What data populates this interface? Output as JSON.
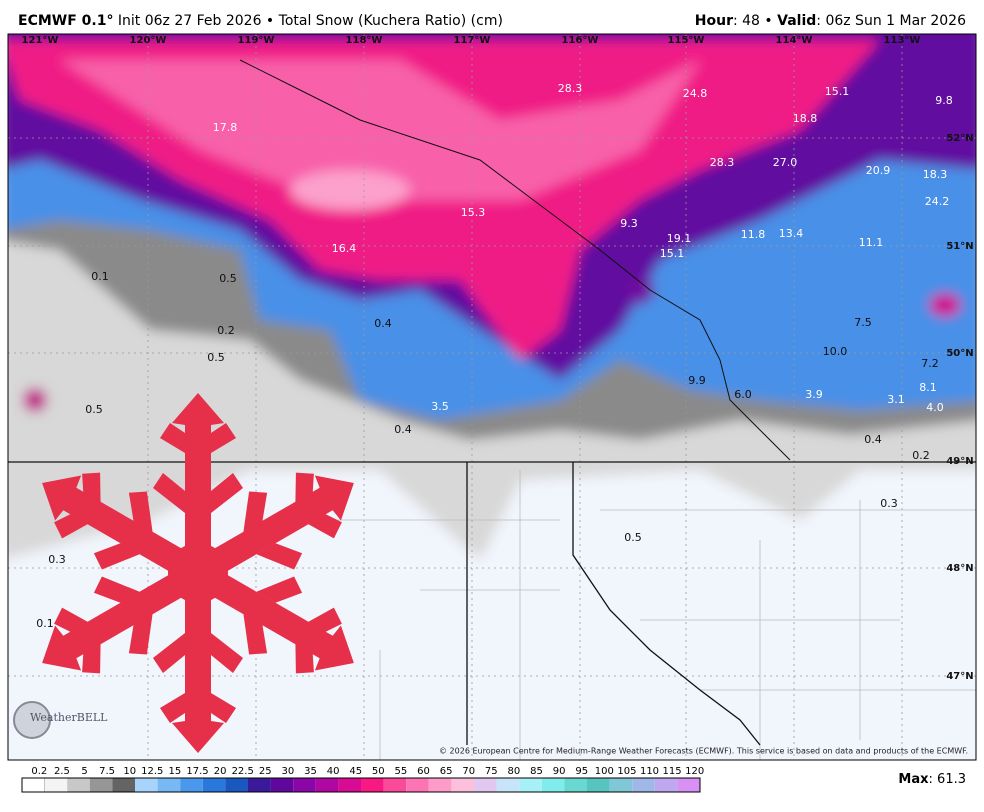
{
  "header": {
    "model": "ECMWF 0.1°",
    "run": "Init 06z 27 Feb 2026 • Total Snow (Kuchera Ratio) (cm)",
    "hour_label": "Hour",
    "hour": ": 48 •",
    "valid_label": "Valid",
    "valid": ": 06z Sun 1 Mar 2026"
  },
  "map": {
    "longitudes": [
      "121°W",
      "120°W",
      "119°W",
      "118°W",
      "117°W",
      "116°W",
      "115°W",
      "114°W",
      "113°W"
    ],
    "latitudes": [
      "52°N",
      "51°N",
      "50°N",
      "49°N",
      "48°N",
      "47°N"
    ],
    "labels": [
      "28.3",
      "24.8",
      "15.1",
      "9.8",
      "17.8",
      "18.8",
      "28.3",
      "27.0",
      "20.9",
      "18.3",
      "24.2",
      "15.3",
      "9.3",
      "19.1",
      "15.1",
      "11.8",
      "13.4",
      "11.1",
      "16.4",
      "0.1",
      "0.5",
      "0.4",
      "0.2",
      "7.5",
      "0.5",
      "10.0",
      "7.2",
      "9.9",
      "8.1",
      "6.0",
      "3.9",
      "3.1",
      "4.0",
      "3.5",
      "0.5",
      "0.4",
      "0.4",
      "0.2",
      "0.3",
      "0.5",
      "0.3",
      "0.1"
    ],
    "logo": "WeatherBELL",
    "copyright": "© 2026 European Centre for Medium-Range Weather Forecasts (ECMWF). This service is based on data and products of the ECMWF."
  },
  "colorbar": {
    "ticks": [
      "0.2",
      "2.5",
      "5",
      "7.5",
      "10",
      "12.5",
      "15",
      "17.5",
      "20",
      "22.5",
      "25",
      "30",
      "35",
      "40",
      "45",
      "50",
      "55",
      "60",
      "65",
      "70",
      "75",
      "80",
      "85",
      "90",
      "95",
      "100",
      "105",
      "110",
      "115",
      "120"
    ],
    "colors": [
      "#f4f4f4",
      "#c8c8c8",
      "#969696",
      "#646464",
      "#a8d4fb",
      "#78b8f5",
      "#4a98ec",
      "#2a78dc",
      "#1a58c0",
      "#3a1a9a",
      "#60089e",
      "#8a06a6",
      "#b006a2",
      "#d80c94",
      "#f81a82",
      "#fb4a9a",
      "#fc74b4",
      "#fd9cc8",
      "#fdc0dc",
      "#e0c8f0",
      "#c8e4f8",
      "#a8f0f8",
      "#80ecec",
      "#68d8d0",
      "#58c4c0",
      "#80c8d8",
      "#a0b8e8",
      "#c0a8f0",
      "#d890f4"
    ],
    "max_label": "Max",
    "max": ": 61.3"
  }
}
